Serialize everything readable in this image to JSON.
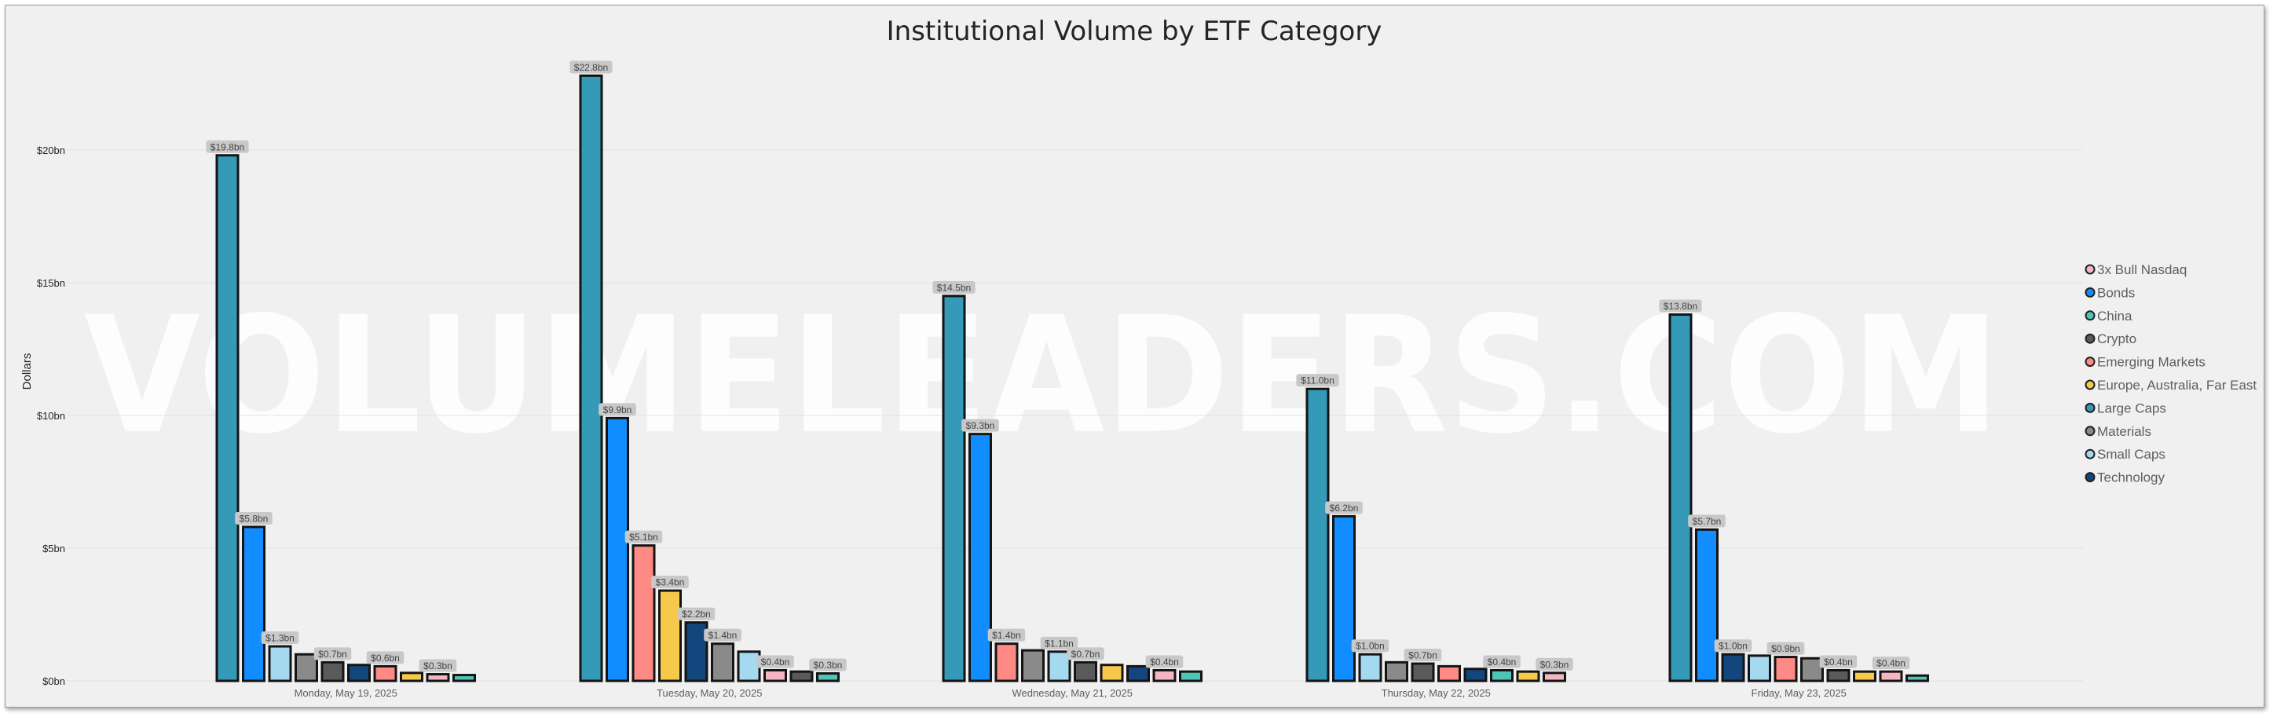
{
  "watermark": "VOLUMELEADERS.COM",
  "chart_data": {
    "type": "bar",
    "title": "Institutional Volume by ETF Category",
    "xlabel": "",
    "ylabel": "Dollars",
    "ylim": [
      0,
      23
    ],
    "yticks": [
      0,
      5,
      10,
      15,
      20
    ],
    "ytick_labels": [
      "$0bn",
      "$5bn",
      "$10bn",
      "$15bn",
      "$20bn"
    ],
    "grid": true,
    "legend_position": "right",
    "categories": [
      "Monday, May 19, 2025",
      "Tuesday, May 20, 2025",
      "Wednesday, May 21, 2025",
      "Thursday, May 22, 2025",
      "Friday, May 23, 2025"
    ],
    "legend": [
      {
        "name": "3x Bull Nasdaq",
        "color": "#f4b6c2"
      },
      {
        "name": "Bonds",
        "color": "#118dff"
      },
      {
        "name": "China",
        "color": "#4ec5b6"
      },
      {
        "name": "Crypto",
        "color": "#5a5a5a"
      },
      {
        "name": "Emerging Markets",
        "color": "#fd8a85"
      },
      {
        "name": "Europe, Australia, Far East",
        "color": "#f6c94b"
      },
      {
        "name": "Large Caps",
        "color": "#3599b8"
      },
      {
        "name": "Materials",
        "color": "#8a8a8a"
      },
      {
        "name": "Small Caps",
        "color": "#a5d9ef"
      },
      {
        "name": "Technology",
        "color": "#12467c"
      }
    ],
    "groups": [
      {
        "category": "Monday, May 19, 2025",
        "bars": [
          {
            "series": "Large Caps",
            "value": 19.8,
            "label": "$19.8bn"
          },
          {
            "series": "Bonds",
            "value": 5.8,
            "label": "$5.8bn"
          },
          {
            "series": "Small Caps",
            "value": 1.3,
            "label": "$1.3bn"
          },
          {
            "series": "Materials",
            "value": 1.0,
            "label": ""
          },
          {
            "series": "Crypto",
            "value": 0.7,
            "label": "$0.7bn"
          },
          {
            "series": "Technology",
            "value": 0.6,
            "label": ""
          },
          {
            "series": "Emerging Markets",
            "value": 0.55,
            "label": "$0.6bn"
          },
          {
            "series": "Europe, Australia, Far East",
            "value": 0.3,
            "label": ""
          },
          {
            "series": "3x Bull Nasdaq",
            "value": 0.25,
            "label": "$0.3bn"
          },
          {
            "series": "China",
            "value": 0.22,
            "label": ""
          }
        ]
      },
      {
        "category": "Tuesday, May 20, 2025",
        "bars": [
          {
            "series": "Large Caps",
            "value": 22.8,
            "label": "$22.8bn"
          },
          {
            "series": "Bonds",
            "value": 9.9,
            "label": "$9.9bn"
          },
          {
            "series": "Emerging Markets",
            "value": 5.1,
            "label": "$5.1bn"
          },
          {
            "series": "Europe, Australia, Far East",
            "value": 3.4,
            "label": "$3.4bn"
          },
          {
            "series": "Technology",
            "value": 2.2,
            "label": "$2.2bn"
          },
          {
            "series": "Materials",
            "value": 1.4,
            "label": "$1.4bn"
          },
          {
            "series": "Small Caps",
            "value": 1.1,
            "label": ""
          },
          {
            "series": "3x Bull Nasdaq",
            "value": 0.4,
            "label": "$0.4bn"
          },
          {
            "series": "Crypto",
            "value": 0.35,
            "label": ""
          },
          {
            "series": "China",
            "value": 0.28,
            "label": "$0.3bn"
          }
        ]
      },
      {
        "category": "Wednesday, May 21, 2025",
        "bars": [
          {
            "series": "Large Caps",
            "value": 14.5,
            "label": "$14.5bn"
          },
          {
            "series": "Bonds",
            "value": 9.3,
            "label": "$9.3bn"
          },
          {
            "series": "Emerging Markets",
            "value": 1.4,
            "label": "$1.4bn"
          },
          {
            "series": "Materials",
            "value": 1.15,
            "label": ""
          },
          {
            "series": "Small Caps",
            "value": 1.1,
            "label": "$1.1bn"
          },
          {
            "series": "Crypto",
            "value": 0.7,
            "label": "$0.7bn"
          },
          {
            "series": "Europe, Australia, Far East",
            "value": 0.6,
            "label": ""
          },
          {
            "series": "Technology",
            "value": 0.55,
            "label": ""
          },
          {
            "series": "3x Bull Nasdaq",
            "value": 0.4,
            "label": "$0.4bn"
          },
          {
            "series": "China",
            "value": 0.35,
            "label": ""
          }
        ]
      },
      {
        "category": "Thursday, May 22, 2025",
        "bars": [
          {
            "series": "Large Caps",
            "value": 11.0,
            "label": "$11.0bn"
          },
          {
            "series": "Bonds",
            "value": 6.2,
            "label": "$6.2bn"
          },
          {
            "series": "Small Caps",
            "value": 1.0,
            "label": "$1.0bn"
          },
          {
            "series": "Materials",
            "value": 0.7,
            "label": ""
          },
          {
            "series": "Crypto",
            "value": 0.65,
            "label": "$0.7bn"
          },
          {
            "series": "Emerging Markets",
            "value": 0.55,
            "label": ""
          },
          {
            "series": "Technology",
            "value": 0.45,
            "label": ""
          },
          {
            "series": "China",
            "value": 0.4,
            "label": "$0.4bn"
          },
          {
            "series": "Europe, Australia, Far East",
            "value": 0.35,
            "label": ""
          },
          {
            "series": "3x Bull Nasdaq",
            "value": 0.3,
            "label": "$0.3bn"
          }
        ]
      },
      {
        "category": "Friday, May 23, 2025",
        "bars": [
          {
            "series": "Large Caps",
            "value": 13.8,
            "label": "$13.8bn"
          },
          {
            "series": "Bonds",
            "value": 5.7,
            "label": "$5.7bn"
          },
          {
            "series": "Technology",
            "value": 1.0,
            "label": "$1.0bn"
          },
          {
            "series": "Small Caps",
            "value": 0.95,
            "label": ""
          },
          {
            "series": "Emerging Markets",
            "value": 0.9,
            "label": "$0.9bn"
          },
          {
            "series": "Materials",
            "value": 0.85,
            "label": ""
          },
          {
            "series": "Crypto",
            "value": 0.4,
            "label": "$0.4bn"
          },
          {
            "series": "Europe, Australia, Far East",
            "value": 0.35,
            "label": ""
          },
          {
            "series": "3x Bull Nasdaq",
            "value": 0.35,
            "label": "$0.4bn"
          },
          {
            "series": "China",
            "value": 0.2,
            "label": ""
          }
        ]
      }
    ]
  }
}
